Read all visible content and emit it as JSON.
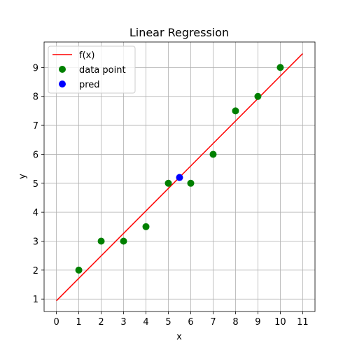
{
  "chart_data": {
    "type": "scatter",
    "title": "Linear Regression",
    "xlabel": "x",
    "ylabel": "y",
    "xlim": [
      -0.55,
      11.55
    ],
    "ylim": [
      0.57,
      9.88
    ],
    "xticks": [
      0,
      1,
      2,
      3,
      4,
      5,
      6,
      7,
      8,
      9,
      10,
      11
    ],
    "yticks": [
      1,
      2,
      3,
      4,
      5,
      6,
      7,
      8,
      9
    ],
    "grid": true,
    "legend_position": "top-left",
    "series": [
      {
        "name": "f(x)",
        "kind": "line",
        "color": "#ff0000",
        "x": [
          0,
          11
        ],
        "y": [
          0.94,
          9.48
        ]
      },
      {
        "name": "data point",
        "kind": "scatter",
        "color": "#008000",
        "x": [
          1,
          2,
          3,
          4,
          5,
          6,
          7,
          8,
          9,
          10
        ],
        "y": [
          2,
          3,
          3,
          3.5,
          5,
          5,
          6,
          7.5,
          8,
          9
        ]
      },
      {
        "name": "pred",
        "kind": "scatter",
        "color": "#0000ff",
        "x": [
          5.5
        ],
        "y": [
          5.2
        ]
      }
    ]
  }
}
